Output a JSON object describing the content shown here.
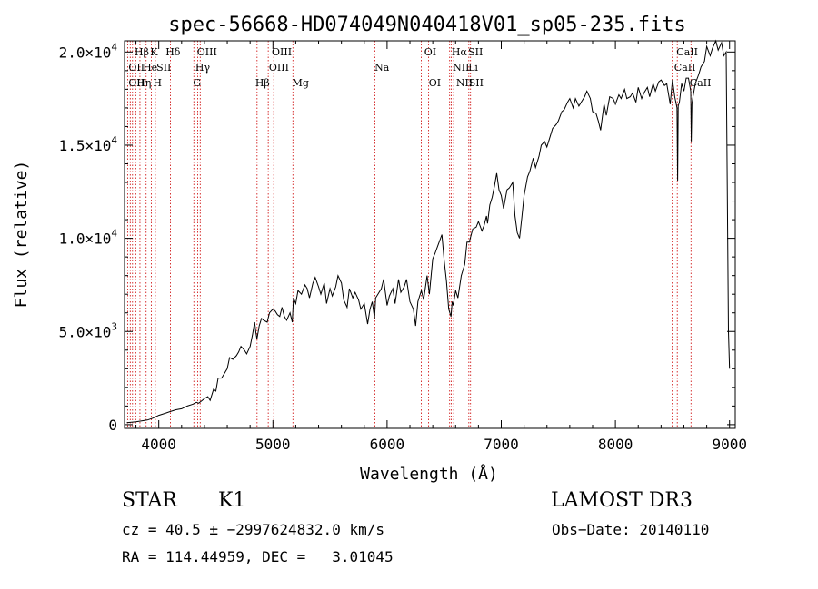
{
  "chart_data": {
    "type": "line",
    "title": "spec-56668-HD074049N040418V01_sp05-235.fits",
    "xlabel": "Wavelength (Å)",
    "ylabel": "Flux (relative)",
    "xlim": [
      3700,
      9050
    ],
    "ylim": [
      -200,
      20600
    ],
    "xticks": [
      {
        "value": 4000,
        "label": "4000"
      },
      {
        "value": 5000,
        "label": "5000"
      },
      {
        "value": 6000,
        "label": "6000"
      },
      {
        "value": 7000,
        "label": "7000"
      },
      {
        "value": 8000,
        "label": "8000"
      },
      {
        "value": 9000,
        "label": "9000"
      }
    ],
    "yticks": [
      {
        "value": 0,
        "mant": "0",
        "exp": ""
      },
      {
        "value": 5000,
        "mant": "5.0×10",
        "exp": "3"
      },
      {
        "value": 10000,
        "mant": "1.0×10",
        "exp": "4"
      },
      {
        "value": 15000,
        "mant": "1.5×10",
        "exp": "4"
      },
      {
        "value": 20000,
        "mant": "2.0×10",
        "exp": "4"
      }
    ],
    "series": [
      {
        "name": "spectrum",
        "x": [
          3720,
          3800,
          3900,
          3950,
          4000,
          4050,
          4100,
          4150,
          4200,
          4250,
          4300,
          4330,
          4350,
          4380,
          4400,
          4430,
          4450,
          4480,
          4500,
          4520,
          4550,
          4570,
          4600,
          4620,
          4650,
          4680,
          4700,
          4720,
          4750,
          4770,
          4800,
          4820,
          4840,
          4850,
          4860,
          4880,
          4900,
          4920,
          4950,
          4970,
          5000,
          5020,
          5040,
          5060,
          5080,
          5100,
          5120,
          5150,
          5170,
          5180,
          5200,
          5220,
          5250,
          5280,
          5300,
          5320,
          5350,
          5370,
          5400,
          5420,
          5450,
          5470,
          5500,
          5520,
          5550,
          5570,
          5600,
          5620,
          5650,
          5670,
          5700,
          5720,
          5750,
          5770,
          5800,
          5830,
          5850,
          5870,
          5890,
          5900,
          5920,
          5950,
          5970,
          6000,
          6020,
          6050,
          6070,
          6100,
          6120,
          6150,
          6170,
          6200,
          6230,
          6250,
          6270,
          6300,
          6320,
          6350,
          6370,
          6400,
          6420,
          6450,
          6480,
          6500,
          6520,
          6540,
          6560,
          6570,
          6580,
          6600,
          6620,
          6650,
          6680,
          6700,
          6720,
          6750,
          6780,
          6800,
          6830,
          6850,
          6870,
          6880,
          6900,
          6920,
          6940,
          6960,
          6980,
          7000,
          7020,
          7050,
          7070,
          7100,
          7120,
          7140,
          7160,
          7180,
          7200,
          7230,
          7250,
          7280,
          7300,
          7330,
          7350,
          7380,
          7400,
          7430,
          7450,
          7480,
          7500,
          7530,
          7550,
          7580,
          7600,
          7630,
          7650,
          7680,
          7700,
          7730,
          7750,
          7780,
          7800,
          7830,
          7850,
          7870,
          7900,
          7920,
          7950,
          7980,
          8000,
          8030,
          8050,
          8080,
          8100,
          8130,
          8150,
          8180,
          8200,
          8230,
          8250,
          8280,
          8300,
          8330,
          8350,
          8380,
          8400,
          8430,
          8450,
          8480,
          8500,
          8520,
          8540,
          8545,
          8550,
          8560,
          8580,
          8600,
          8620,
          8640,
          8660,
          8665,
          8670,
          8680,
          8700,
          8730,
          8750,
          8780,
          8800,
          8830,
          8850,
          8880,
          8900,
          8930,
          8950,
          8970,
          8990,
          9000
        ],
        "values": [
          100,
          150,
          250,
          350,
          500,
          600,
          700,
          800,
          850,
          1000,
          1100,
          1200,
          1150,
          1300,
          1400,
          1500,
          1300,
          1900,
          1800,
          2500,
          2500,
          2700,
          3000,
          3600,
          3500,
          3700,
          3900,
          4200,
          4000,
          3800,
          4200,
          4800,
          5500,
          5000,
          4600,
          5300,
          5700,
          5600,
          5500,
          6000,
          6200,
          6100,
          5900,
          5800,
          6300,
          5800,
          5600,
          6000,
          5500,
          6800,
          6500,
          7200,
          7000,
          7500,
          7300,
          6800,
          7600,
          7900,
          7400,
          7000,
          7600,
          6500,
          7300,
          6900,
          7400,
          8000,
          7600,
          6700,
          6300,
          7300,
          6800,
          7100,
          6700,
          6200,
          6500,
          5400,
          6200,
          6600,
          5700,
          6800,
          7000,
          7300,
          7800,
          6400,
          6900,
          7300,
          6500,
          7800,
          7100,
          7400,
          7800,
          6600,
          6200,
          5300,
          6600,
          7200,
          6700,
          8000,
          7000,
          8900,
          9200,
          9700,
          10200,
          8800,
          7700,
          6200,
          5800,
          6600,
          6400,
          7200,
          6800,
          8000,
          8600,
          9800,
          9800,
          10500,
          10600,
          10900,
          10400,
          10700,
          11200,
          10800,
          11800,
          12200,
          12800,
          13500,
          12600,
          12300,
          11600,
          12600,
          12700,
          13000,
          11200,
          10300,
          10000,
          11100,
          12300,
          13300,
          13600,
          14300,
          13800,
          14400,
          15000,
          15200,
          14900,
          15500,
          15900,
          16100,
          16300,
          16800,
          16900,
          17300,
          17500,
          17000,
          17500,
          17100,
          17300,
          17600,
          17900,
          17500,
          16800,
          16700,
          16300,
          15800,
          17200,
          16600,
          17600,
          17500,
          17200,
          17700,
          17500,
          18000,
          17500,
          17600,
          17800,
          17300,
          18100,
          17500,
          17800,
          18100,
          17600,
          18300,
          17900,
          18400,
          18500,
          18200,
          18300,
          17200,
          18500,
          17600,
          17000,
          13100,
          17100,
          17300,
          18300,
          17900,
          18600,
          18600,
          17900,
          15200,
          17200,
          17600,
          18300,
          18800,
          19200,
          19500,
          20300,
          19800,
          20200,
          20600,
          20100,
          20500,
          19800,
          20000,
          5000,
          3000
        ]
      }
    ],
    "line_groups": [
      {
        "lines": [
          3727,
          3750,
          3770,
          3798,
          3835,
          3889,
          3934,
          3970,
          4102,
          4307,
          4341,
          4363,
          4861,
          4959,
          5007,
          5175,
          5893,
          6300,
          6364,
          6548,
          6563,
          6583,
          6716,
          6731,
          8498,
          8542,
          8662
        ],
        "labels": [
          {
            "text": "Hβ",
            "x": 3788,
            "row": 0
          },
          {
            "text": "K",
            "x": 3925,
            "row": 0
          },
          {
            "text": "Hδ",
            "x": 4060,
            "row": 0
          },
          {
            "text": "OIII",
            "x": 4335,
            "row": 0
          },
          {
            "text": "OIII",
            "x": 4990,
            "row": 0
          },
          {
            "text": "OI",
            "x": 6325,
            "row": 0
          },
          {
            "text": "Hα",
            "x": 6565,
            "row": 0
          },
          {
            "text": "SII",
            "x": 6710,
            "row": 0
          },
          {
            "text": "CaII",
            "x": 8535,
            "row": 0
          },
          {
            "text": "OII",
            "x": 3735,
            "row": 1
          },
          {
            "text": "He",
            "x": 3860,
            "row": 1
          },
          {
            "text": "SII",
            "x": 3980,
            "row": 1
          },
          {
            "text": "Hγ",
            "x": 4320,
            "row": 1
          },
          {
            "text": "OIII",
            "x": 4965,
            "row": 1
          },
          {
            "text": "Na",
            "x": 5890,
            "row": 1
          },
          {
            "text": "NII",
            "x": 6575,
            "row": 1
          },
          {
            "text": "Li",
            "x": 6710,
            "row": 1
          },
          {
            "text": "CaII",
            "x": 8515,
            "row": 1
          },
          {
            "text": "OII",
            "x": 3735,
            "row": 2
          },
          {
            "text": "Hη",
            "x": 3805,
            "row": 2
          },
          {
            "text": "H",
            "x": 3950,
            "row": 2
          },
          {
            "text": "G",
            "x": 4300,
            "row": 2
          },
          {
            "text": "Hβ",
            "x": 4845,
            "row": 2
          },
          {
            "text": "Mg",
            "x": 5170,
            "row": 2
          },
          {
            "text": "OI",
            "x": 6365,
            "row": 2
          },
          {
            "text": "NII",
            "x": 6605,
            "row": 2
          },
          {
            "text": "SII",
            "x": 6715,
            "row": 2
          },
          {
            "text": "CaII",
            "x": 8650,
            "row": 2
          }
        ]
      }
    ]
  },
  "info": {
    "object_class": "STAR",
    "subclass": "K1",
    "survey": "LAMOST DR3",
    "redshift_line": "cz = 40.5 ± −2997624832.0 km/s",
    "obs_date_line": "Obs−Date: 20140110",
    "coords_line": "RA = 114.44959, DEC =   3.01045"
  },
  "colors": {
    "line": "#000000",
    "marker": "#cc0000",
    "text": "#000000"
  }
}
